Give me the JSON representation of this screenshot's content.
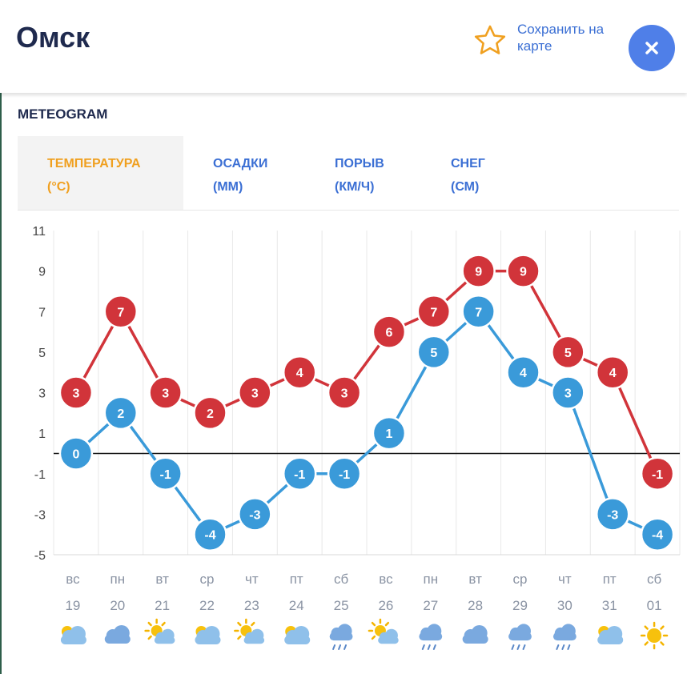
{
  "header": {
    "city": "Омск",
    "save_label": "Сохранить на карте"
  },
  "section_title": "METEOGRAM",
  "tabs": [
    {
      "label1": "ТЕМПЕРАТУРА",
      "label2": "(°C)"
    },
    {
      "label1": "ОСАДКИ",
      "label2": "(ММ)"
    },
    {
      "label1": "ПОРЫВ",
      "label2": "(КМ/Ч)"
    },
    {
      "label1": "СНЕГ",
      "label2": "(СМ)"
    }
  ],
  "colors": {
    "max": "#d1343a",
    "min": "#3a9ad9",
    "active_tab": "#f0a020",
    "link": "#3b6fd4"
  },
  "chart_data": {
    "type": "line",
    "ylim": [
      -5,
      11
    ],
    "yticks": [
      11,
      9,
      7,
      5,
      3,
      1,
      -1,
      -3,
      -5
    ],
    "grid": true,
    "days": [
      "вс",
      "пн",
      "вт",
      "ср",
      "чт",
      "пт",
      "сб",
      "вс",
      "пн",
      "вт",
      "ср",
      "чт",
      "пт",
      "сб"
    ],
    "dates": [
      "19",
      "20",
      "21",
      "22",
      "23",
      "24",
      "25",
      "26",
      "27",
      "28",
      "29",
      "30",
      "31",
      "01"
    ],
    "series": [
      {
        "key": "max",
        "values": [
          3,
          7,
          3,
          2,
          3,
          4,
          3,
          6,
          7,
          9,
          9,
          5,
          4,
          -1
        ]
      },
      {
        "key": "min",
        "values": [
          0,
          2,
          -1,
          -4,
          -3,
          -1,
          -1,
          1,
          5,
          7,
          4,
          3,
          -3,
          -4
        ]
      }
    ],
    "icons": [
      "cloudy-icon",
      "cloud-icon",
      "partly-sunny-icon",
      "cloudy-icon",
      "partly-sunny-icon",
      "cloudy-icon",
      "rain-icon",
      "partly-sunny-icon",
      "rain-icon",
      "cloud-icon",
      "rain-icon",
      "rain-icon",
      "cloudy-icon",
      "sun-icon"
    ]
  }
}
